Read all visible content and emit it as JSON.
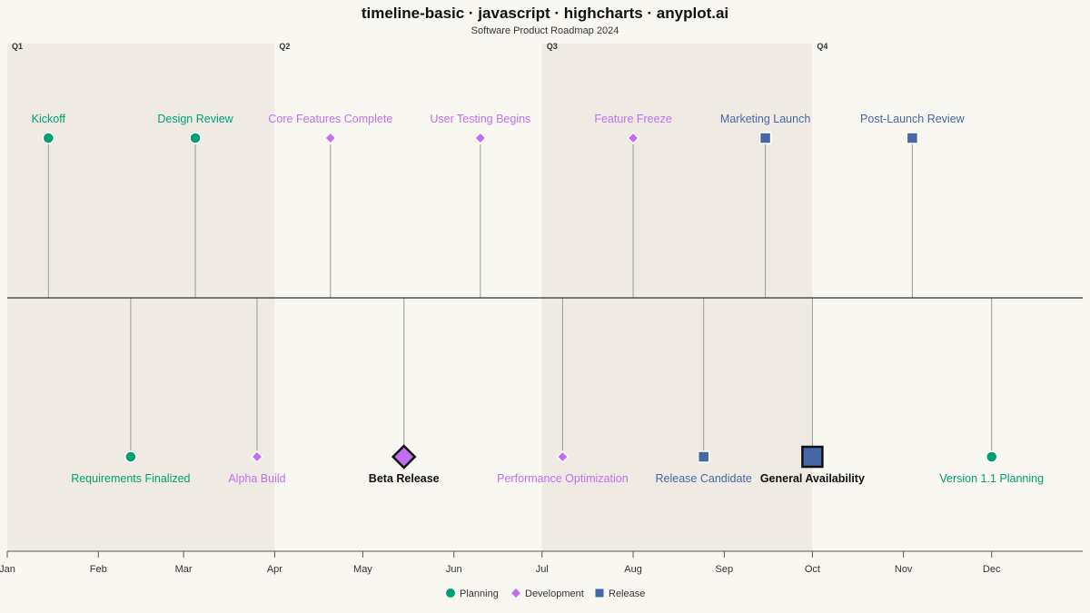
{
  "header": {
    "title": "timeline-basic · javascript · highcharts · anyplot.ai",
    "subtitle": "Software Product Roadmap 2024"
  },
  "chart_data": {
    "type": "timeline",
    "title": "timeline-basic · javascript · highcharts · anyplot.ai",
    "subtitle": "Software Product Roadmap 2024",
    "year": 2024,
    "x_range": [
      "2024-01-01",
      "2024-12-31"
    ],
    "x_ticks": [
      "Jan",
      "Feb",
      "Mar",
      "Apr",
      "May",
      "Jun",
      "Jul",
      "Aug",
      "Sep",
      "Oct",
      "Nov",
      "Dec"
    ],
    "quarters": [
      {
        "label": "Q1",
        "start": "2024-01-01",
        "end": "2024-04-01",
        "shaded": true
      },
      {
        "label": "Q2",
        "start": "2024-04-01",
        "end": "2024-07-01",
        "shaded": false
      },
      {
        "label": "Q3",
        "start": "2024-07-01",
        "end": "2024-10-01",
        "shaded": true
      },
      {
        "label": "Q4",
        "start": "2024-10-01",
        "end": "2024-12-31",
        "shaded": false
      }
    ],
    "categories": [
      {
        "name": "Planning",
        "color": "#009e73",
        "marker": "circle"
      },
      {
        "name": "Development",
        "color": "#c16ff0",
        "marker": "diamond"
      },
      {
        "name": "Release",
        "color": "#4467a6",
        "marker": "square"
      }
    ],
    "events": [
      {
        "date": "2024-01-15",
        "label": "Kickoff",
        "category": "Planning",
        "side": "above",
        "major": false
      },
      {
        "date": "2024-02-12",
        "label": "Requirements Finalized",
        "category": "Planning",
        "side": "below",
        "major": false
      },
      {
        "date": "2024-03-05",
        "label": "Design Review",
        "category": "Planning",
        "side": "above",
        "major": false
      },
      {
        "date": "2024-03-26",
        "label": "Alpha Build",
        "category": "Development",
        "side": "below",
        "major": false
      },
      {
        "date": "2024-04-20",
        "label": "Core Features Complete",
        "category": "Development",
        "side": "above",
        "major": false
      },
      {
        "date": "2024-05-15",
        "label": "Beta Release",
        "category": "Development",
        "side": "below",
        "major": true
      },
      {
        "date": "2024-06-10",
        "label": "User Testing Begins",
        "category": "Development",
        "side": "above",
        "major": false
      },
      {
        "date": "2024-07-08",
        "label": "Performance Optimization",
        "category": "Development",
        "side": "below",
        "major": false
      },
      {
        "date": "2024-08-01",
        "label": "Feature Freeze",
        "category": "Development",
        "side": "above",
        "major": false
      },
      {
        "date": "2024-08-25",
        "label": "Release Candidate",
        "category": "Release",
        "side": "below",
        "major": false
      },
      {
        "date": "2024-09-15",
        "label": "Marketing Launch",
        "category": "Release",
        "side": "above",
        "major": false
      },
      {
        "date": "2024-10-01",
        "label": "General Availability",
        "category": "Release",
        "side": "below",
        "major": true
      },
      {
        "date": "2024-11-04",
        "label": "Post-Launch Review",
        "category": "Release",
        "side": "above",
        "major": false
      },
      {
        "date": "2024-12-01",
        "label": "Version 1.1 Planning",
        "category": "Planning",
        "side": "below",
        "major": false
      }
    ],
    "legend": {
      "position": "bottom-center",
      "items": [
        "Planning",
        "Development",
        "Release"
      ]
    },
    "grid": false
  }
}
